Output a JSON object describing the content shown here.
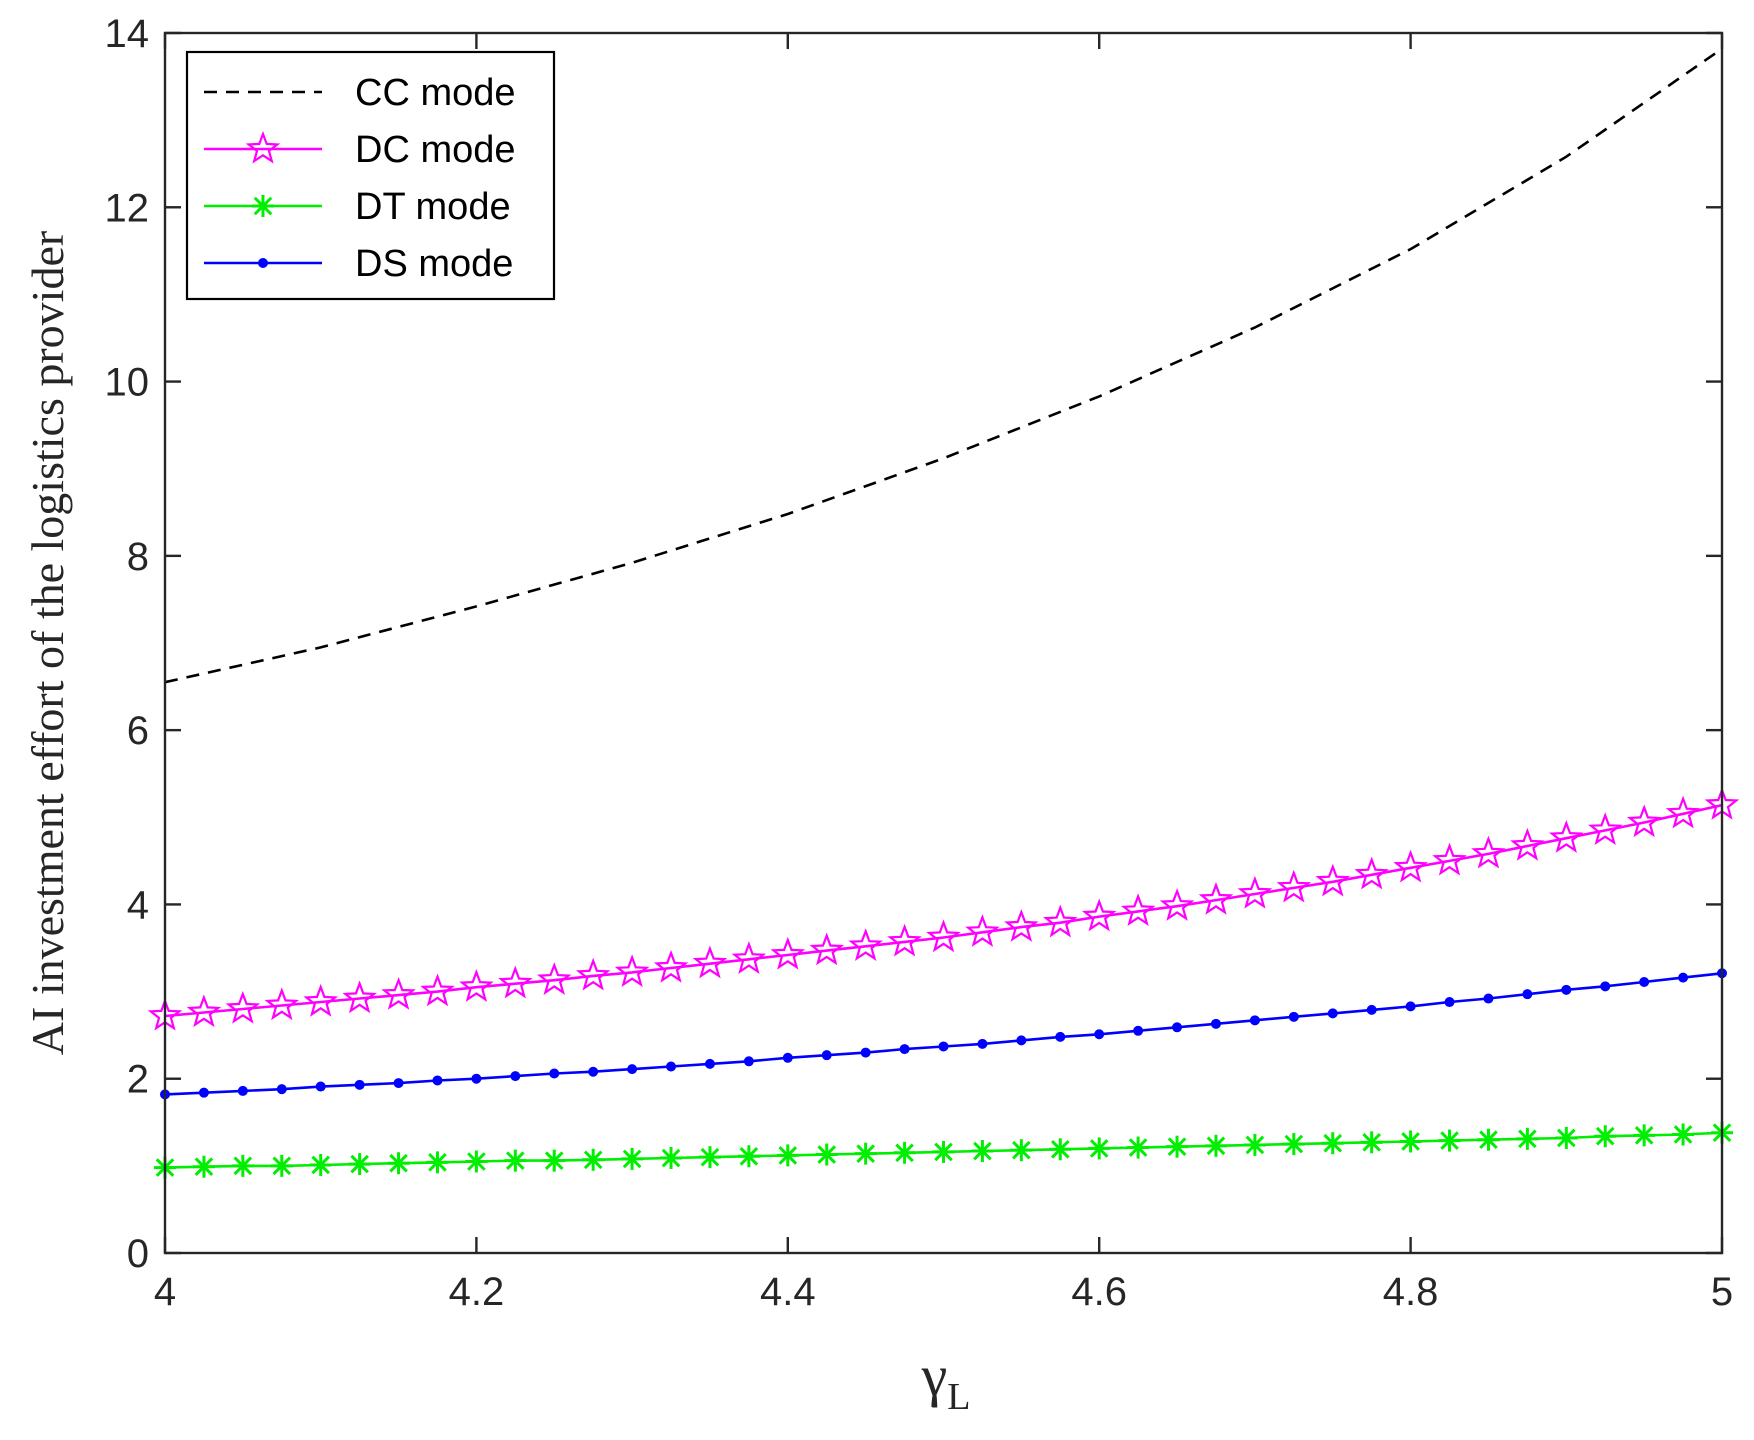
{
  "chart_data": {
    "type": "line",
    "title": "",
    "xlabel_main": "γ",
    "xlabel_sub": "L",
    "ylabel": "AI investment effort of the logistics provider",
    "xlim": [
      4,
      5
    ],
    "ylim": [
      0,
      14
    ],
    "xticks": [
      4,
      4.2,
      4.4,
      4.6,
      4.8,
      5
    ],
    "xtick_labels": [
      "4",
      "4.2",
      "4.4",
      "4.6",
      "4.8",
      "5"
    ],
    "yticks": [
      0,
      2,
      4,
      6,
      8,
      10,
      12,
      14
    ],
    "ytick_labels": [
      "0",
      "2",
      "4",
      "6",
      "8",
      "10",
      "12",
      "14"
    ],
    "grid": false,
    "legend_position": "top-left",
    "series": [
      {
        "name": "CC mode",
        "color": "#000000",
        "style": "dashed",
        "marker": "none",
        "x": [
          4.0,
          4.1,
          4.2,
          4.3,
          4.4,
          4.5,
          4.6,
          4.7,
          4.8,
          4.9,
          5.0
        ],
        "y": [
          6.55,
          6.95,
          7.42,
          7.92,
          8.48,
          9.12,
          9.83,
          10.62,
          11.52,
          12.58,
          13.82
        ]
      },
      {
        "name": "DC mode",
        "color": "#ff00ff",
        "style": "solid",
        "marker": "star",
        "x": [
          4.0,
          4.025,
          4.05,
          4.075,
          4.1,
          4.125,
          4.15,
          4.175,
          4.2,
          4.225,
          4.25,
          4.275,
          4.3,
          4.325,
          4.35,
          4.375,
          4.4,
          4.425,
          4.45,
          4.475,
          4.5,
          4.525,
          4.55,
          4.575,
          4.6,
          4.625,
          4.65,
          4.675,
          4.7,
          4.725,
          4.75,
          4.775,
          4.8,
          4.825,
          4.85,
          4.875,
          4.9,
          4.925,
          4.95,
          4.975,
          5.0
        ],
        "y": [
          2.72,
          2.76,
          2.8,
          2.84,
          2.88,
          2.92,
          2.96,
          3.0,
          3.05,
          3.09,
          3.13,
          3.18,
          3.22,
          3.27,
          3.32,
          3.37,
          3.42,
          3.47,
          3.52,
          3.57,
          3.62,
          3.68,
          3.74,
          3.79,
          3.86,
          3.92,
          3.98,
          4.05,
          4.12,
          4.19,
          4.26,
          4.34,
          4.42,
          4.5,
          4.58,
          4.67,
          4.76,
          4.85,
          4.94,
          5.04,
          5.14
        ]
      },
      {
        "name": "DT mode",
        "color": "#00ee00",
        "style": "solid",
        "marker": "asterisk",
        "x": [
          4.0,
          4.025,
          4.05,
          4.075,
          4.1,
          4.125,
          4.15,
          4.175,
          4.2,
          4.225,
          4.25,
          4.275,
          4.3,
          4.325,
          4.35,
          4.375,
          4.4,
          4.425,
          4.45,
          4.475,
          4.5,
          4.525,
          4.55,
          4.575,
          4.6,
          4.625,
          4.65,
          4.675,
          4.7,
          4.725,
          4.75,
          4.775,
          4.8,
          4.825,
          4.85,
          4.875,
          4.9,
          4.925,
          4.95,
          4.975,
          5.0
        ],
        "y": [
          0.98,
          0.99,
          1.0,
          1.0,
          1.01,
          1.02,
          1.03,
          1.04,
          1.05,
          1.06,
          1.06,
          1.07,
          1.08,
          1.09,
          1.1,
          1.11,
          1.12,
          1.13,
          1.14,
          1.15,
          1.16,
          1.17,
          1.18,
          1.19,
          1.2,
          1.21,
          1.22,
          1.23,
          1.24,
          1.25,
          1.26,
          1.27,
          1.28,
          1.29,
          1.3,
          1.31,
          1.32,
          1.34,
          1.35,
          1.36,
          1.38
        ]
      },
      {
        "name": "DS mode",
        "color": "#0000ff",
        "style": "solid",
        "marker": "dot",
        "x": [
          4.0,
          4.025,
          4.05,
          4.075,
          4.1,
          4.125,
          4.15,
          4.175,
          4.2,
          4.225,
          4.25,
          4.275,
          4.3,
          4.325,
          4.35,
          4.375,
          4.4,
          4.425,
          4.45,
          4.475,
          4.5,
          4.525,
          4.55,
          4.575,
          4.6,
          4.625,
          4.65,
          4.675,
          4.7,
          4.725,
          4.75,
          4.775,
          4.8,
          4.825,
          4.85,
          4.875,
          4.9,
          4.925,
          4.95,
          4.975,
          5.0
        ],
        "y": [
          1.82,
          1.84,
          1.86,
          1.88,
          1.91,
          1.93,
          1.95,
          1.98,
          2.0,
          2.03,
          2.06,
          2.08,
          2.11,
          2.14,
          2.17,
          2.2,
          2.24,
          2.27,
          2.3,
          2.34,
          2.37,
          2.4,
          2.44,
          2.48,
          2.51,
          2.55,
          2.59,
          2.63,
          2.67,
          2.71,
          2.75,
          2.79,
          2.83,
          2.88,
          2.92,
          2.97,
          3.02,
          3.06,
          3.11,
          3.16,
          3.21
        ]
      }
    ]
  }
}
